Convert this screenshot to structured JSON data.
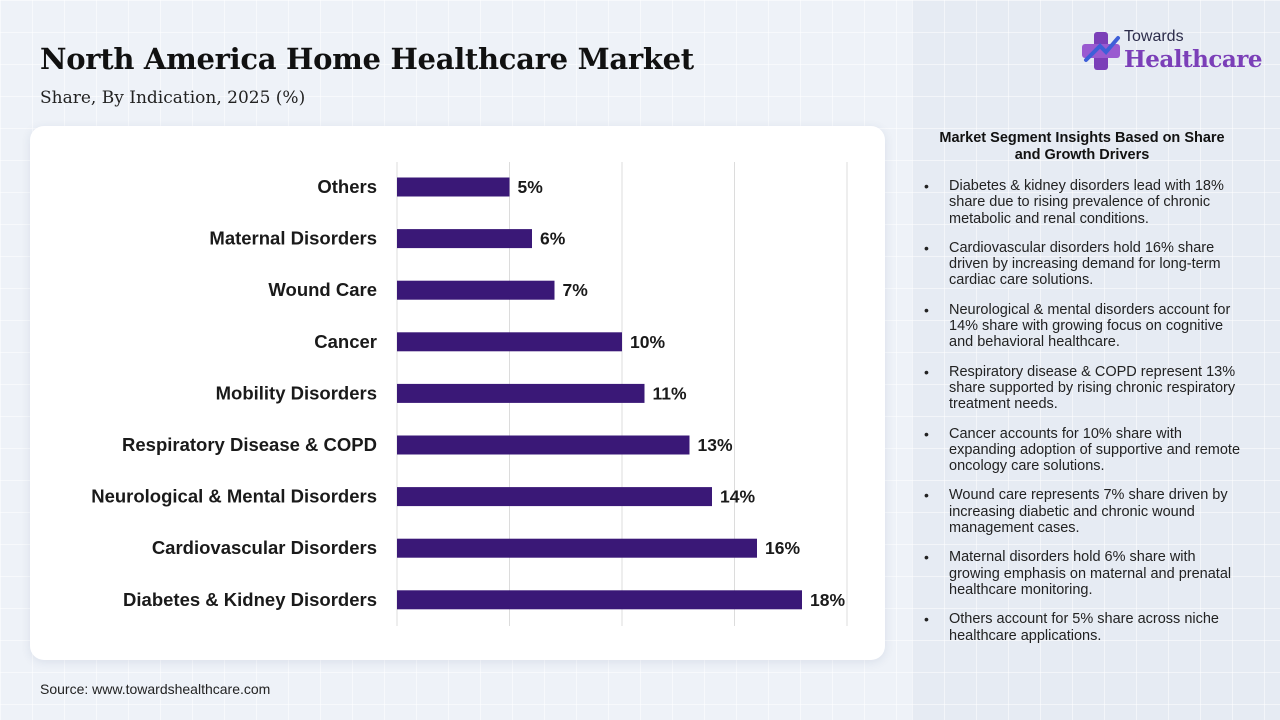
{
  "header": {
    "title": "North America Home Healthcare Market",
    "subtitle": "Share, By Indication, 2025 (%)"
  },
  "source": "Source: www.towardshealthcare.com",
  "logo": {
    "line1": "Towards",
    "line2": "Healthcare",
    "icon": "medical-cross-icon"
  },
  "colors": {
    "bar": "#3a1877",
    "brand_purple": "#7b3fb8",
    "brand_blue": "#3e5fd8"
  },
  "insights": {
    "title": "Market Segment Insights Based on Share and Growth Drivers",
    "items": [
      "Diabetes & kidney disorders lead with 18% share due to rising prevalence of chronic metabolic and renal conditions.",
      "Cardiovascular disorders hold 16% share driven by increasing demand for long-term cardiac care solutions.",
      "Neurological & mental disorders account for 14% share with growing focus on cognitive and behavioral healthcare.",
      "Respiratory disease & COPD represent 13% share supported by rising chronic respiratory treatment needs.",
      "Cancer accounts for 10% share with expanding adoption of supportive and remote oncology care solutions.",
      "Wound care represents 7% share driven by increasing diabetic and chronic wound management cases.",
      "Maternal disorders hold 6% share with growing emphasis on maternal and prenatal healthcare monitoring.",
      "Others account for 5% share across niche healthcare applications."
    ]
  },
  "chart_data": {
    "type": "bar",
    "orientation": "horizontal",
    "title": "North America Home Healthcare Market",
    "subtitle": "Share, By Indication, 2025 (%)",
    "categories": [
      "Others",
      "Maternal Disorders",
      "Wound Care",
      "Cancer",
      "Mobility Disorders",
      "Respiratory Disease & COPD",
      "Neurological & Mental Disorders",
      "Cardiovascular Disorders",
      "Diabetes & Kidney Disorders"
    ],
    "values": [
      5,
      6,
      7,
      10,
      11,
      13,
      14,
      16,
      18
    ],
    "value_labels": [
      "5%",
      "6%",
      "7%",
      "10%",
      "11%",
      "13%",
      "14%",
      "16%",
      "18%"
    ],
    "xlim": [
      0,
      20
    ],
    "x_gridlines": [
      0,
      5,
      10,
      15,
      20
    ],
    "xlabel": "",
    "ylabel": "",
    "grid": true,
    "legend": "none"
  }
}
